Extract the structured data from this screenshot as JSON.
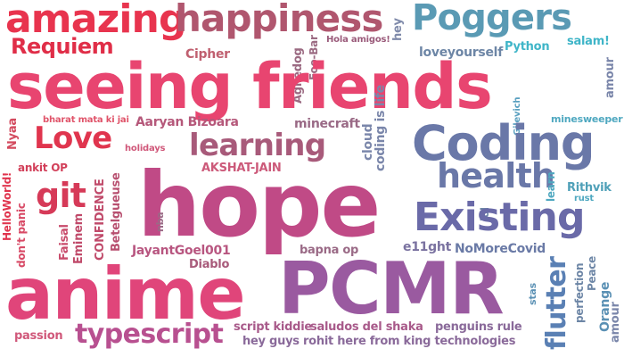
{
  "words": [
    {
      "text": "amazing",
      "color": "#e8344e"
    },
    {
      "text": "happiness",
      "color": "#b0566e"
    },
    {
      "text": "Poggers",
      "color": "#5a9ab4"
    },
    {
      "text": "hey",
      "color": "#7f8aaa"
    },
    {
      "text": "Requiem",
      "color": "#e02e48"
    },
    {
      "text": "Hola amigos!",
      "color": "#9a5a7a"
    },
    {
      "text": "Python",
      "color": "#3fb5c8"
    },
    {
      "text": "salam!",
      "color": "#3fb5c8"
    },
    {
      "text": "Cipher",
      "color": "#c06070"
    },
    {
      "text": "Agiledog",
      "color": "#9b6a82"
    },
    {
      "text": "Foo-Bar",
      "color": "#9b6a82"
    },
    {
      "text": "loveyourself",
      "color": "#6d86a6"
    },
    {
      "text": "seeing friends",
      "color": "#e84570"
    },
    {
      "text": "amour",
      "color": "#7a86aa"
    },
    {
      "text": "Love",
      "color": "#e0354e"
    },
    {
      "text": "Nyaa",
      "color": "#d34a5e"
    },
    {
      "text": "bharat mata ki jai",
      "color": "#e0546a"
    },
    {
      "text": "Aaryan Bizoara",
      "color": "#b5587a"
    },
    {
      "text": "minecraft",
      "color": "#9a6a86"
    },
    {
      "text": "cloud",
      "color": "#7a86aa"
    },
    {
      "text": "coding is life",
      "color": "#7a86aa"
    },
    {
      "text": "Gilevich",
      "color": "#5aa0c0"
    },
    {
      "text": "minesweeper",
      "color": "#4fa8c0"
    },
    {
      "text": "Coding",
      "color": "#6a78a8"
    },
    {
      "text": "learning",
      "color": "#a85a7a"
    },
    {
      "text": "holidays",
      "color": "#d0587a"
    },
    {
      "text": "ankit OP",
      "color": "#d2405a"
    },
    {
      "text": "AKSHAT-JAIN",
      "color": "#cc5a7a"
    },
    {
      "text": "health",
      "color": "#6a78a8"
    },
    {
      "text": "HelloWorld!",
      "color": "#e0354e"
    },
    {
      "text": "git",
      "color": "#d63a58"
    },
    {
      "text": "CONFIDENCE",
      "color": "#c04a6a"
    },
    {
      "text": "Betelgueuse",
      "color": "#b85070"
    },
    {
      "text": "hope",
      "color": "#c04a86"
    },
    {
      "text": "nba",
      "color": "#9a6a86"
    },
    {
      "text": "lol",
      "color": "#6d86a6"
    },
    {
      "text": "learn",
      "color": "#4fa8c0"
    },
    {
      "text": "Rithvik",
      "color": "#4fa0b8"
    },
    {
      "text": "rust",
      "color": "#4fa8c0"
    },
    {
      "text": "don't panic",
      "color": "#d84a66"
    },
    {
      "text": "Faisal",
      "color": "#c84a6a"
    },
    {
      "text": "Eminem",
      "color": "#c04a6a"
    },
    {
      "text": "Existing",
      "color": "#6a6aa8"
    },
    {
      "text": "JayantGoel001",
      "color": "#b85680"
    },
    {
      "text": "Diablo",
      "color": "#a85a7a"
    },
    {
      "text": "e11ght",
      "color": "#7a72a0"
    },
    {
      "text": "NoMoreCovid",
      "color": "#6a7aa6"
    },
    {
      "text": "flutter",
      "color": "#5a80b4"
    },
    {
      "text": "perfection",
      "color": "#6d86a6"
    },
    {
      "text": "Peace",
      "color": "#6d86a6"
    },
    {
      "text": "bapna op",
      "color": "#9a6a86"
    },
    {
      "text": "stas",
      "color": "#5a90b4"
    },
    {
      "text": "Orange",
      "color": "#5a90b4"
    },
    {
      "text": "anime",
      "color": "#e0457a"
    },
    {
      "text": "PCMR",
      "color": "#9a5aa0"
    },
    {
      "text": "typescript",
      "color": "#b85090"
    },
    {
      "text": "script kiddie",
      "color": "#a85a8a"
    },
    {
      "text": "saludos del shaka",
      "color": "#a85a8a"
    },
    {
      "text": "penguins rule",
      "color": "#8a6a9a"
    },
    {
      "text": "passion",
      "color": "#d0587a"
    },
    {
      "text": "hey guys rohit here from king technologies",
      "color": "#8a6a9a"
    }
  ]
}
